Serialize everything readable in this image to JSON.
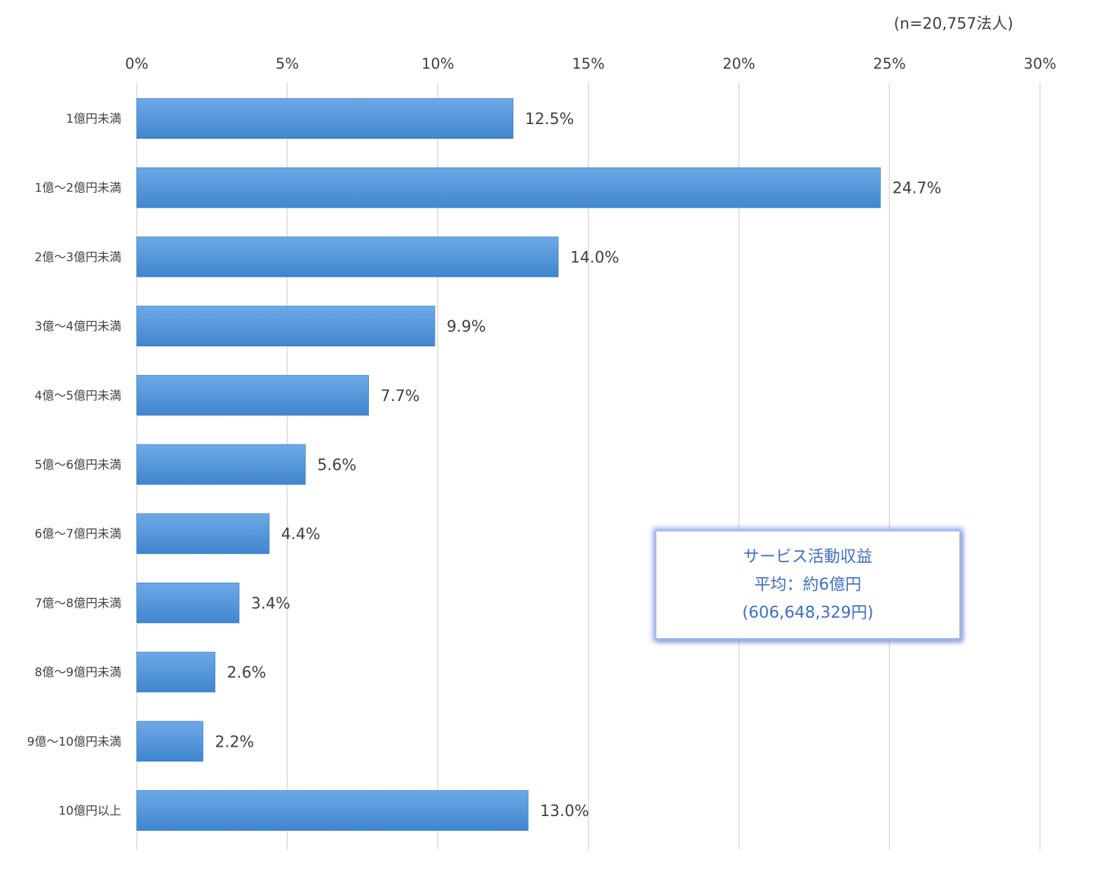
{
  "chart_data": {
    "type": "bar",
    "orientation": "horizontal",
    "sample_note": "(n=20,757法人)",
    "categories": [
      "1億円未満",
      "1億～2億円未満",
      "2億～3億円未満",
      "3億～4億円未満",
      "4億～5億円未満",
      "5億～6億円未満",
      "6億～7億円未満",
      "7億～8億円未満",
      "8億～9億円未満",
      "9億～10億円未満",
      "10億円以上"
    ],
    "values": [
      12.5,
      24.7,
      14.0,
      9.9,
      7.7,
      5.6,
      4.4,
      3.4,
      2.6,
      2.2,
      13.0
    ],
    "value_labels": [
      "12.5%",
      "24.7%",
      "14.0%",
      "9.9%",
      "7.7%",
      "5.6%",
      "4.4%",
      "3.4%",
      "2.6%",
      "2.2%",
      "13.0%"
    ],
    "xlim": [
      0,
      30
    ],
    "x_ticks": [
      0,
      5,
      10,
      15,
      20,
      25,
      30
    ],
    "x_tick_labels": [
      "0%",
      "5%",
      "10%",
      "15%",
      "20%",
      "25%",
      "30%"
    ],
    "axis_position": "top",
    "grid": true,
    "bar_color": "#4a90d6",
    "grid_color": "#d9d9d9"
  },
  "callout": {
    "line1": "サービス活動収益",
    "line2": "平均：約6億円",
    "line3": "(606,648,329円)"
  }
}
